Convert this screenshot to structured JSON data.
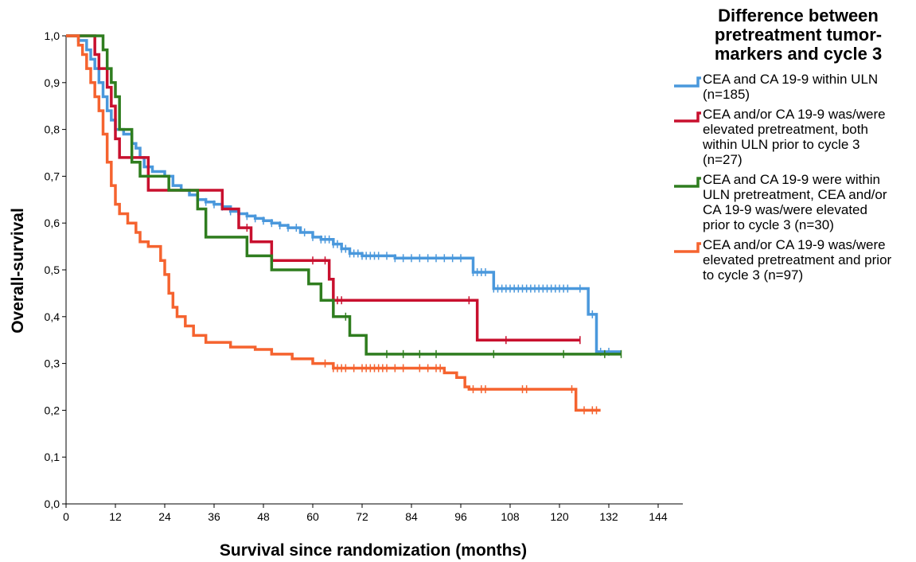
{
  "chart_data": {
    "type": "line",
    "step": true,
    "title": "",
    "xlabel": "Survival since randomization (months)",
    "ylabel": "Overall-survival",
    "xlim": [
      0,
      150
    ],
    "ylim": [
      0,
      1.0
    ],
    "x_ticks": [
      "0",
      "12",
      "24",
      "36",
      "48",
      "60",
      "72",
      "84",
      "96",
      "108",
      "120",
      "132",
      "144"
    ],
    "y_ticks": [
      "0,0",
      "0,1",
      "0,2",
      "0,3",
      "0,4",
      "0,5",
      "0,6",
      "0,7",
      "0,8",
      "0,9",
      "1,0"
    ],
    "legend": {
      "position": "right",
      "title": "Difference between pretreatment tumor-markers and cycle 3"
    },
    "grid": false,
    "series": [
      {
        "name": "CEA and CA 19-9 within ULN\n(n=185)",
        "color": "#4a98dc",
        "points": [
          [
            0,
            1.0
          ],
          [
            3,
            0.99
          ],
          [
            5,
            0.97
          ],
          [
            6,
            0.95
          ],
          [
            7,
            0.93
          ],
          [
            8,
            0.9
          ],
          [
            9,
            0.87
          ],
          [
            10,
            0.84
          ],
          [
            11,
            0.82
          ],
          [
            12,
            0.8
          ],
          [
            14,
            0.79
          ],
          [
            16,
            0.77
          ],
          [
            17,
            0.76
          ],
          [
            18,
            0.74
          ],
          [
            19,
            0.72
          ],
          [
            21,
            0.71
          ],
          [
            24,
            0.7
          ],
          [
            26,
            0.68
          ],
          [
            28,
            0.67
          ],
          [
            30,
            0.66
          ],
          [
            32,
            0.65
          ],
          [
            34,
            0.645
          ],
          [
            36,
            0.64
          ],
          [
            38,
            0.635
          ],
          [
            40,
            0.625
          ],
          [
            42,
            0.62
          ],
          [
            44,
            0.615
          ],
          [
            46,
            0.61
          ],
          [
            48,
            0.605
          ],
          [
            50,
            0.6
          ],
          [
            52,
            0.595
          ],
          [
            54,
            0.59
          ],
          [
            57,
            0.58
          ],
          [
            60,
            0.57
          ],
          [
            62,
            0.565
          ],
          [
            65,
            0.555
          ],
          [
            67,
            0.545
          ],
          [
            69,
            0.535
          ],
          [
            72,
            0.53
          ],
          [
            78,
            0.53
          ],
          [
            80,
            0.525
          ],
          [
            98,
            0.525
          ],
          [
            99,
            0.495
          ],
          [
            103,
            0.495
          ],
          [
            104,
            0.46
          ],
          [
            126,
            0.46
          ],
          [
            127,
            0.405
          ],
          [
            128,
            0.405
          ],
          [
            129,
            0.325
          ],
          [
            135,
            0.325
          ]
        ],
        "censor_x": [
          32,
          34,
          36,
          38,
          40,
          42,
          44,
          46,
          48,
          50,
          52,
          54,
          56,
          58,
          60,
          62,
          63,
          64,
          65,
          66,
          67,
          68,
          69,
          70,
          71,
          72,
          73,
          74,
          75,
          76,
          78,
          80,
          82,
          84,
          86,
          88,
          90,
          92,
          94,
          96,
          99,
          100,
          101,
          102,
          104,
          105,
          106,
          107,
          108,
          109,
          110,
          111,
          112,
          113,
          114,
          115,
          116,
          117,
          118,
          119,
          120,
          121,
          122,
          125,
          128,
          130,
          132
        ]
      },
      {
        "name": "CEA and/or CA 19-9 was/were\nelevated pretreatment, both\nwithin ULN prior to cycle 3\n(n=27)",
        "color": "#c8102e",
        "points": [
          [
            0,
            1.0
          ],
          [
            7,
            0.96
          ],
          [
            8,
            0.93
          ],
          [
            10,
            0.89
          ],
          [
            11,
            0.85
          ],
          [
            12,
            0.78
          ],
          [
            13,
            0.74
          ],
          [
            19,
            0.74
          ],
          [
            20,
            0.67
          ],
          [
            36,
            0.67
          ],
          [
            38,
            0.63
          ],
          [
            42,
            0.59
          ],
          [
            45,
            0.56
          ],
          [
            50,
            0.52
          ],
          [
            63,
            0.52
          ],
          [
            64,
            0.48
          ],
          [
            65,
            0.435
          ],
          [
            99,
            0.435
          ],
          [
            100,
            0.35
          ],
          [
            125,
            0.35
          ]
        ],
        "censor_x": [
          44,
          60,
          63,
          66,
          67,
          98,
          107,
          125
        ]
      },
      {
        "name": "CEA and CA 19-9 were within\nULN pretreatment, CEA and/or\nCA 19-9 was/were elevated\nprior to cycle 3 (n=30)",
        "color": "#2f7d1f",
        "points": [
          [
            0,
            1.0
          ],
          [
            8,
            1.0
          ],
          [
            9,
            0.97
          ],
          [
            10,
            0.93
          ],
          [
            11,
            0.9
          ],
          [
            12,
            0.87
          ],
          [
            13,
            0.8
          ],
          [
            16,
            0.73
          ],
          [
            18,
            0.7
          ],
          [
            24,
            0.7
          ],
          [
            25,
            0.67
          ],
          [
            31,
            0.67
          ],
          [
            32,
            0.63
          ],
          [
            34,
            0.57
          ],
          [
            43,
            0.57
          ],
          [
            44,
            0.53
          ],
          [
            49,
            0.53
          ],
          [
            50,
            0.5
          ],
          [
            58,
            0.5
          ],
          [
            59,
            0.47
          ],
          [
            62,
            0.435
          ],
          [
            64,
            0.435
          ],
          [
            65,
            0.4
          ],
          [
            68,
            0.4
          ],
          [
            69,
            0.36
          ],
          [
            72,
            0.36
          ],
          [
            73,
            0.32
          ],
          [
            135,
            0.32
          ]
        ],
        "censor_x": [
          68,
          78,
          82,
          86,
          90,
          104,
          121,
          131,
          135
        ]
      },
      {
        "name": "CEA and/or CA 19-9 was/were\nelevated pretreatment and prior\nto cycle 3 (n=97)",
        "color": "#f5632f",
        "points": [
          [
            0,
            1.0
          ],
          [
            3,
            0.98
          ],
          [
            4,
            0.96
          ],
          [
            5,
            0.93
          ],
          [
            6,
            0.9
          ],
          [
            7,
            0.87
          ],
          [
            8,
            0.84
          ],
          [
            9,
            0.79
          ],
          [
            10,
            0.73
          ],
          [
            11,
            0.68
          ],
          [
            12,
            0.64
          ],
          [
            13,
            0.62
          ],
          [
            15,
            0.6
          ],
          [
            17,
            0.58
          ],
          [
            18,
            0.56
          ],
          [
            20,
            0.55
          ],
          [
            23,
            0.52
          ],
          [
            24,
            0.49
          ],
          [
            25,
            0.45
          ],
          [
            26,
            0.42
          ],
          [
            27,
            0.4
          ],
          [
            29,
            0.38
          ],
          [
            31,
            0.36
          ],
          [
            34,
            0.345
          ],
          [
            40,
            0.335
          ],
          [
            46,
            0.33
          ],
          [
            50,
            0.32
          ],
          [
            55,
            0.31
          ],
          [
            60,
            0.3
          ],
          [
            65,
            0.29
          ],
          [
            90,
            0.29
          ],
          [
            92,
            0.28
          ],
          [
            95,
            0.27
          ],
          [
            97,
            0.25
          ],
          [
            98,
            0.245
          ],
          [
            123,
            0.245
          ],
          [
            124,
            0.2
          ],
          [
            130,
            0.2
          ]
        ],
        "censor_x": [
          63,
          65,
          66,
          67,
          68,
          70,
          72,
          73,
          74,
          75,
          76,
          77,
          78,
          80,
          82,
          86,
          88,
          90,
          91,
          99,
          101,
          102,
          111,
          112,
          123,
          126,
          128,
          129
        ]
      }
    ]
  }
}
